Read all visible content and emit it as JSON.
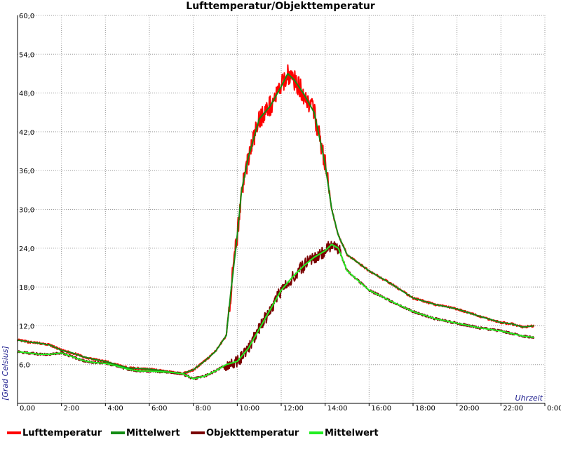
{
  "chart_data": {
    "type": "line",
    "title": "Lufttemperatur/Objekttemperatur",
    "ylabel": "[Grad Celsius]",
    "xlabel": "Uhrzeit",
    "x_range_hours": [
      0,
      24
    ],
    "ylim": [
      0,
      60
    ],
    "grid": true,
    "x_ticks": [
      "0,00",
      "2:00",
      "4:00",
      "6:00",
      "8:00",
      "10:00",
      "12:00",
      "14:00",
      "16:00",
      "18:00",
      "20:00",
      "22:00",
      "0:00"
    ],
    "y_ticks": [
      "6,0",
      "12,0",
      "18,0",
      "24,0",
      "30,0",
      "36,0",
      "42,0",
      "48,0",
      "54,0",
      "60,0"
    ],
    "series": [
      {
        "name": "Lufttemperatur",
        "color": "#ff0000",
        "noisy": true,
        "x": [
          0,
          0.5,
          1,
          1.5,
          2,
          2.5,
          3,
          3.5,
          4,
          4.5,
          5,
          5.5,
          6,
          6.5,
          7,
          7.5,
          8,
          8.5,
          9,
          9.5,
          9.7,
          10,
          10.2,
          10.5,
          11,
          11.5,
          12,
          12.3,
          12.6,
          13,
          13.5,
          14,
          14.3,
          14.6,
          15,
          16,
          17,
          18,
          19,
          20,
          21,
          22,
          22.5,
          23,
          23.5
        ],
        "y": [
          9.8,
          9.5,
          9.3,
          9.0,
          8.2,
          7.8,
          7.2,
          6.8,
          6.5,
          6.0,
          5.5,
          5.4,
          5.3,
          5.1,
          4.8,
          4.6,
          5.2,
          6.5,
          8.0,
          10.5,
          17,
          26,
          33,
          38,
          44,
          46,
          49,
          51,
          50,
          48,
          45,
          37,
          30,
          26,
          23,
          20.5,
          18.5,
          16.3,
          15.3,
          14.6,
          13.5,
          12.5,
          12.3,
          11.8,
          12.0
        ]
      },
      {
        "name": "Mittelwert",
        "color": "#138c13",
        "noisy": false,
        "x": [
          0,
          0.5,
          1,
          1.5,
          2,
          2.5,
          3,
          3.5,
          4,
          4.5,
          5,
          5.5,
          6,
          6.5,
          7,
          7.5,
          8,
          8.5,
          9,
          9.5,
          9.7,
          10,
          10.2,
          10.5,
          11,
          11.5,
          12,
          12.3,
          12.6,
          13,
          13.5,
          14,
          14.3,
          14.6,
          15,
          16,
          17,
          18,
          19,
          20,
          21,
          22,
          22.5,
          23,
          23.5
        ],
        "y": [
          9.8,
          9.5,
          9.3,
          9.0,
          8.2,
          7.8,
          7.2,
          6.8,
          6.5,
          6.0,
          5.5,
          5.4,
          5.3,
          5.1,
          4.8,
          4.6,
          5.2,
          6.5,
          8.0,
          10.5,
          17,
          26,
          33,
          38,
          44,
          46,
          49,
          51,
          50,
          48,
          45,
          37,
          30,
          26,
          23,
          20.5,
          18.5,
          16.3,
          15.3,
          14.6,
          13.5,
          12.5,
          12.3,
          11.8,
          12.0
        ]
      },
      {
        "name": "Objekttemperatur",
        "color": "#7a0000",
        "noisy": true,
        "x": [
          0,
          0.5,
          1,
          1.5,
          2,
          2.5,
          3,
          3.5,
          4,
          4.5,
          5,
          5.5,
          6,
          6.5,
          7,
          7.5,
          8,
          8.5,
          9,
          9.5,
          10,
          10.5,
          11,
          11.5,
          12,
          12.5,
          13,
          13.5,
          14,
          14.3,
          14.6,
          15,
          16,
          17,
          18,
          19,
          20,
          21,
          22,
          22.5,
          23,
          23.5
        ],
        "y": [
          8.0,
          7.8,
          7.6,
          7.6,
          7.8,
          7.2,
          6.6,
          6.3,
          6.2,
          5.8,
          5.3,
          5.0,
          5.0,
          4.9,
          4.8,
          4.6,
          3.8,
          4.2,
          5.0,
          6.0,
          6.5,
          8.5,
          11.5,
          14.5,
          17.5,
          19.5,
          21.2,
          22.6,
          23.6,
          24.6,
          24.0,
          20.5,
          17.5,
          15.8,
          14.2,
          13.1,
          12.4,
          11.7,
          11.2,
          10.8,
          10.4,
          10.2
        ]
      },
      {
        "name": "Mittelwert",
        "color": "#22ee22",
        "noisy": false,
        "x": [
          0,
          0.5,
          1,
          1.5,
          2,
          2.5,
          3,
          3.5,
          4,
          4.5,
          5,
          5.5,
          6,
          6.5,
          7,
          7.5,
          8,
          8.5,
          9,
          9.5,
          10,
          10.5,
          11,
          11.5,
          12,
          12.5,
          13,
          13.5,
          14,
          14.3,
          14.6,
          15,
          16,
          17,
          18,
          19,
          20,
          21,
          22,
          22.5,
          23,
          23.5
        ],
        "y": [
          8.0,
          7.8,
          7.6,
          7.6,
          7.8,
          7.2,
          6.6,
          6.3,
          6.2,
          5.8,
          5.3,
          5.0,
          5.0,
          4.9,
          4.8,
          4.6,
          3.8,
          4.2,
          5.0,
          6.0,
          6.5,
          8.5,
          11.5,
          14.5,
          17.5,
          19.5,
          21.2,
          22.6,
          23.6,
          24.6,
          24.0,
          20.5,
          17.5,
          15.8,
          14.2,
          13.1,
          12.4,
          11.7,
          11.2,
          10.8,
          10.4,
          10.2
        ]
      }
    ],
    "legend": {
      "position": "bottom",
      "items": [
        {
          "name": "Lufttemperatur",
          "color": "#ff0000"
        },
        {
          "name": "Mittelwert",
          "color": "#138c13"
        },
        {
          "name": "Objekttemperatur",
          "color": "#7a0000"
        },
        {
          "name": "Mittelwert",
          "color": "#22ee22"
        }
      ]
    }
  }
}
